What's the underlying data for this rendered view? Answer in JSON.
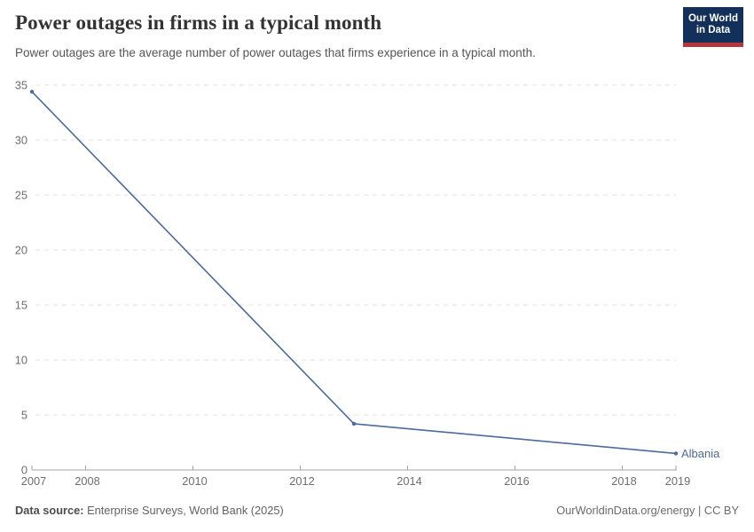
{
  "header": {
    "title": "Power outages in firms in a typical month",
    "subtitle": "Power outages are the average number of power outages that firms experience in a typical month."
  },
  "logo": {
    "line1": "Our World",
    "line2": "in Data",
    "bg_color": "#12305a",
    "accent_color": "#b5353c"
  },
  "chart_data": {
    "type": "line",
    "title": "Power outages in firms in a typical month",
    "xlabel": "",
    "ylabel": "",
    "xlim": [
      2007,
      2019
    ],
    "ylim": [
      0,
      35
    ],
    "xticks": [
      2007,
      2008,
      2010,
      2012,
      2014,
      2016,
      2018,
      2019
    ],
    "yticks": [
      0,
      5,
      10,
      15,
      20,
      25,
      30,
      35
    ],
    "grid": "horizontal-dashed",
    "legend_position": "end-of-line-label",
    "series": [
      {
        "name": "Albania",
        "color": "#4c6a9c",
        "x": [
          2007,
          2013,
          2019
        ],
        "values": [
          34.4,
          4.2,
          1.5
        ]
      }
    ]
  },
  "axis_style": {
    "tick_label_color": "#6e6e6e",
    "grid_color": "#e0e0e0",
    "axis_line_color": "#a5a5a5"
  },
  "footer": {
    "source_label": "Data source:",
    "source_value": "Enterprise Surveys, World Bank (2025)",
    "right_text": "OurWorldinData.org/energy | CC BY"
  }
}
